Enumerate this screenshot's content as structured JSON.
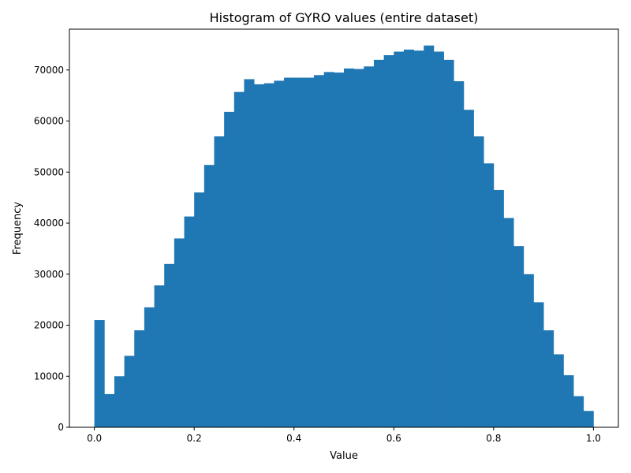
{
  "chart_data": {
    "type": "bar",
    "title": "Histogram of GYRO values (entire dataset)",
    "xlabel": "Value",
    "ylabel": "Frequency",
    "xlim": [
      -0.05,
      1.05
    ],
    "ylim": [
      0,
      78000
    ],
    "xticks": [
      0.0,
      0.2,
      0.4,
      0.6,
      0.8,
      1.0
    ],
    "xtick_labels": [
      "0.0",
      "0.2",
      "0.4",
      "0.6",
      "0.8",
      "1.0"
    ],
    "yticks": [
      0,
      10000,
      20000,
      30000,
      40000,
      50000,
      60000,
      70000
    ],
    "ytick_labels": [
      "0",
      "10000",
      "20000",
      "30000",
      "40000",
      "50000",
      "60000",
      "70000"
    ],
    "bin_edges_start": 0.0,
    "bin_width": 0.02,
    "grid": false,
    "legend": "none",
    "color": "#1f77b4",
    "values": [
      21000,
      6500,
      10000,
      14000,
      19000,
      23500,
      27800,
      32000,
      37000,
      41300,
      46000,
      51400,
      57000,
      61800,
      65700,
      68200,
      67200,
      67400,
      67900,
      68500,
      68500,
      68500,
      69000,
      69600,
      69500,
      70300,
      70200,
      70700,
      72000,
      72900,
      73600,
      74000,
      73800,
      74800,
      73600,
      72000,
      67800,
      62200,
      57000,
      51700,
      46500,
      41000,
      35500,
      30000,
      24500,
      19000,
      14300,
      10200,
      6100,
      3200
    ]
  }
}
